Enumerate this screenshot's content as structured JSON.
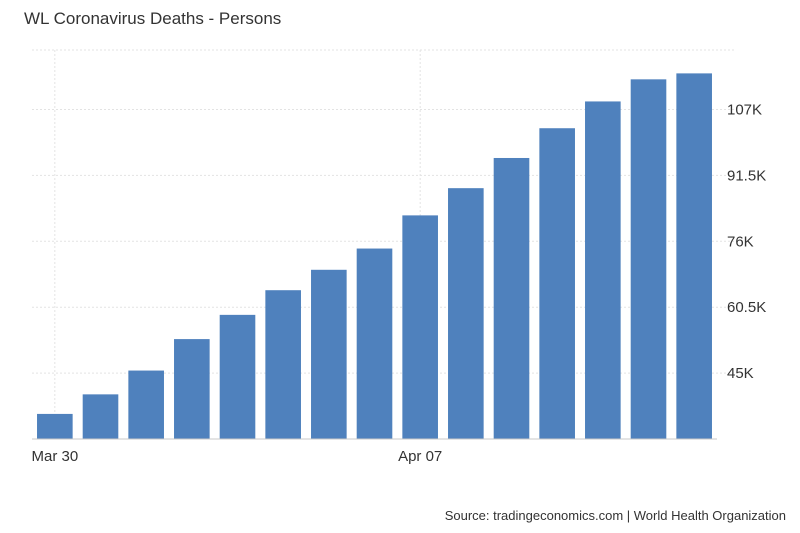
{
  "title": "WL Coronavirus Deaths - Persons",
  "source": "Source: tradingeconomics.com | World Health Organization",
  "colors": {
    "bar": "#4f81bd",
    "grid": "#e3e3e3",
    "axis": "#c8c8c8",
    "text": "#333333"
  },
  "chart_data": {
    "type": "bar",
    "title": "WL Coronavirus Deaths - Persons",
    "xlabel": "",
    "ylabel": "",
    "categories": [
      "2020-03-30",
      "2020-03-31",
      "2020-04-01",
      "2020-04-02",
      "2020-04-03",
      "2020-04-04",
      "2020-04-05",
      "2020-04-06",
      "2020-04-07",
      "2020-04-08",
      "2020-04-09",
      "2020-04-10",
      "2020-04-11",
      "2020-04-12",
      "2020-04-13"
    ],
    "x_tick_labels": [
      {
        "category": "2020-03-30",
        "label": "Mar 30"
      },
      {
        "category": "2020-04-07",
        "label": "Apr 07"
      }
    ],
    "values": [
      35400,
      40000,
      45600,
      53000,
      58700,
      64500,
      69300,
      74300,
      82100,
      88500,
      95600,
      102600,
      108900,
      114100,
      115500
    ],
    "y_ticks": [
      45000,
      60500,
      76000,
      91500,
      107000
    ],
    "y_tick_labels": [
      "45K",
      "60.5K",
      "76K",
      "91.5K",
      "107K"
    ],
    "ylim": [
      29500,
      121000
    ],
    "y_axis_side": "right",
    "grid": true,
    "legend": "none"
  }
}
